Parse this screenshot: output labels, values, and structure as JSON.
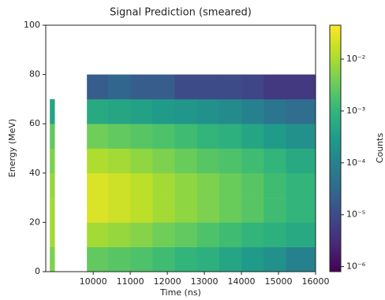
{
  "chart_data": {
    "type": "heatmap",
    "title": "Signal Prediction (smeared)",
    "x_label": "Time (ns)",
    "y_label": "Energy (MeV)",
    "colorbar_label": "Counts",
    "colormap": "viridis",
    "color_scale": "log",
    "x_bins": [
      8830,
      8960,
      9830,
      10400,
      11000,
      11600,
      12200,
      12800,
      13400,
      14000,
      14600,
      15200,
      16000
    ],
    "y_bins": [
      0,
      10,
      20,
      30,
      40,
      50,
      60,
      70,
      80
    ],
    "z": [
      [
        0.005,
        null,
        0.003,
        0.0025,
        0.002,
        0.0015,
        0.001,
        0.0008,
        0.0005,
        0.0003,
        0.0002,
        0.0001
      ],
      [
        0.01,
        null,
        0.01,
        0.008,
        0.006,
        0.004,
        0.003,
        0.002,
        0.0015,
        0.001,
        0.0008,
        0.0006
      ],
      [
        0.01,
        null,
        0.025,
        0.02,
        0.015,
        0.01,
        0.007,
        0.005,
        0.0035,
        0.0025,
        0.0015,
        0.001
      ],
      [
        0.008,
        null,
        0.025,
        0.02,
        0.015,
        0.01,
        0.007,
        0.005,
        0.0035,
        0.0025,
        0.0015,
        0.001
      ],
      [
        0.005,
        null,
        0.012,
        0.01,
        0.007,
        0.005,
        0.0035,
        0.0025,
        0.002,
        0.0015,
        0.001,
        0.0006
      ],
      [
        0.003,
        null,
        0.004,
        0.003,
        0.0025,
        0.002,
        0.0015,
        0.001,
        0.0008,
        0.0005,
        0.0003,
        0.0002
      ],
      [
        0.0005,
        null,
        0.0006,
        0.0005,
        0.0004,
        0.0003,
        0.00025,
        0.0002,
        0.00015,
        0.0001,
        6e-05,
        4e-05
      ],
      [
        null,
        null,
        2e-05,
        3e-05,
        2e-05,
        2e-05,
        1e-05,
        1e-05,
        1e-05,
        8e-06,
        5e-06,
        5e-06
      ]
    ],
    "xlim": [
      8720,
      16000
    ],
    "xticks": [
      10000,
      11000,
      12000,
      13000,
      14000,
      15000,
      16000
    ],
    "ylim": [
      0,
      100
    ],
    "yticks": [
      0,
      20,
      40,
      60,
      80,
      100
    ],
    "clim": [
      8e-07,
      0.045
    ],
    "cticks": [
      {
        "value": 1e-06,
        "label": "10⁻⁶"
      },
      {
        "value": 1e-05,
        "label": "10⁻⁵"
      },
      {
        "value": 0.0001,
        "label": "10⁻⁴"
      },
      {
        "value": 0.001,
        "label": "10⁻³"
      },
      {
        "value": 0.01,
        "label": "10⁻²"
      }
    ]
  }
}
